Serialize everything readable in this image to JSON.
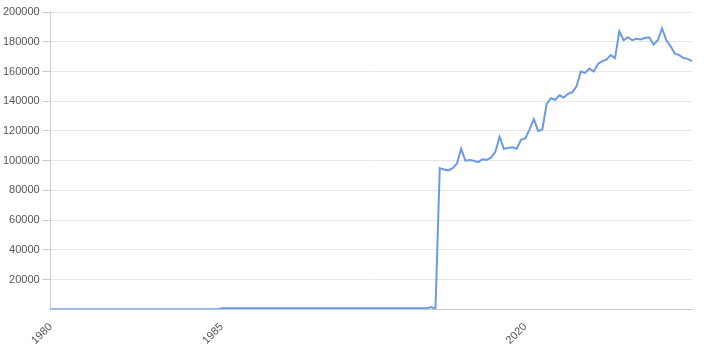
{
  "chart_data": {
    "type": "line",
    "categories": [
      "1980",
      null,
      null,
      null,
      null,
      null,
      null,
      null,
      null,
      null,
      null,
      null,
      null,
      null,
      null,
      null,
      null,
      null,
      null,
      null,
      null,
      null,
      null,
      null,
      null,
      null,
      null,
      null,
      null,
      null,
      null,
      null,
      null,
      null,
      null,
      null,
      null,
      null,
      null,
      null,
      "1985",
      null,
      null,
      null,
      null,
      null,
      null,
      null,
      null,
      null,
      null,
      null,
      null,
      null,
      null,
      null,
      null,
      null,
      null,
      null,
      null,
      null,
      null,
      null,
      null,
      null,
      null,
      null,
      null,
      null,
      null,
      null,
      null,
      null,
      null,
      null,
      null,
      null,
      null,
      null,
      null,
      null,
      null,
      null,
      null,
      null,
      null,
      null,
      null,
      null,
      null,
      null,
      null,
      null,
      null,
      null,
      null,
      null,
      null,
      null,
      null,
      null,
      null,
      null,
      null,
      null,
      null,
      null,
      null,
      null,
      null,
      "2020",
      null,
      null,
      null,
      null,
      null,
      null,
      null,
      null,
      null,
      null,
      null,
      null,
      null,
      null,
      null,
      null,
      null,
      null,
      null,
      null,
      null,
      null,
      null,
      null,
      null,
      null,
      null,
      null,
      null,
      null,
      null,
      null,
      null,
      null,
      null,
      null,
      null,
      null,
      null
    ],
    "values": [
      0,
      0,
      0,
      0,
      0,
      0,
      0,
      0,
      0,
      0,
      0,
      0,
      0,
      0,
      0,
      0,
      0,
      0,
      0,
      0,
      0,
      0,
      0,
      0,
      0,
      0,
      0,
      0,
      0,
      0,
      0,
      0,
      0,
      0,
      0,
      0,
      0,
      0,
      0,
      0,
      800,
      800,
      800,
      800,
      800,
      800,
      800,
      800,
      800,
      800,
      800,
      800,
      800,
      800,
      800,
      800,
      800,
      800,
      800,
      800,
      800,
      800,
      800,
      800,
      800,
      800,
      800,
      800,
      800,
      800,
      800,
      800,
      800,
      800,
      800,
      800,
      800,
      800,
      800,
      800,
      800,
      800,
      800,
      800,
      800,
      800,
      800,
      800,
      800,
      1500,
      500,
      95000,
      94000,
      93500,
      95000,
      98000,
      108000,
      100000,
      100500,
      100000,
      99000,
      101000,
      100500,
      102000,
      106000,
      116000,
      108000,
      108500,
      109000,
      108000,
      114000,
      115000,
      121000,
      128000,
      120000,
      121000,
      138000,
      142000,
      141000,
      144000,
      142500,
      145000,
      146000,
      150000,
      160000,
      159000,
      162000,
      160000,
      165000,
      167000,
      168000,
      171000,
      169000,
      187000,
      181000,
      183000,
      181000,
      182000,
      181500,
      182500,
      183000,
      178000,
      181000,
      189000,
      181000,
      177000,
      172000,
      171000,
      169000,
      168500,
      167000
    ],
    "color": "#6b9ae8",
    "ylim": [
      0,
      200000
    ],
    "yticks": [
      20000,
      40000,
      60000,
      80000,
      100000,
      120000,
      140000,
      160000,
      180000,
      200000
    ],
    "grid": true
  }
}
